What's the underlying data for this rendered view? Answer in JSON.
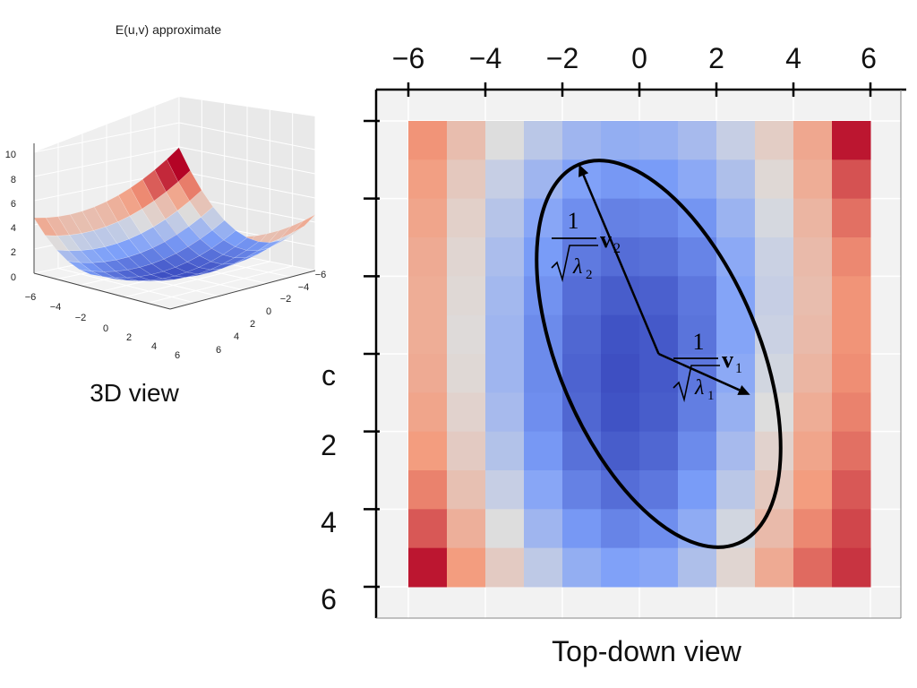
{
  "chart_data": [
    {
      "type": "surface",
      "title": "E(u,v) approximate",
      "caption": "3D view",
      "colormap": "coolwarm",
      "z_ticks": [
        "0",
        "2",
        "4",
        "6",
        "8",
        "10"
      ],
      "x_ticks": [
        "−6",
        "−4",
        "−2",
        "0",
        "2",
        "4",
        "6"
      ],
      "y_ticks": [
        "−6",
        "−4",
        "−2",
        "0",
        "2",
        "4",
        "6"
      ],
      "grid": true
    },
    {
      "type": "heatmap",
      "caption": "Top-down view",
      "colormap": "coolwarm",
      "x_tick_labels": [
        "−6",
        "−4",
        "−2",
        "0",
        "2",
        "4",
        "6"
      ],
      "y_tick_labels": [
        "",
        "",
        "",
        "",
        "",
        "2",
        "4",
        "6"
      ],
      "partial_label": "c",
      "xlim": [
        -7,
        7
      ],
      "ylim": [
        -7,
        7
      ],
      "values": [
        [
          0.76,
          0.62,
          0.5,
          0.41,
          0.34,
          0.31,
          0.32,
          0.36,
          0.44,
          0.56,
          0.7,
          0.97
        ],
        [
          0.73,
          0.58,
          0.44,
          0.34,
          0.26,
          0.23,
          0.24,
          0.29,
          0.38,
          0.52,
          0.68,
          0.87
        ],
        [
          0.71,
          0.55,
          0.4,
          0.28,
          0.2,
          0.16,
          0.17,
          0.22,
          0.33,
          0.48,
          0.65,
          0.82
        ],
        [
          0.69,
          0.53,
          0.37,
          0.24,
          0.14,
          0.1,
          0.11,
          0.17,
          0.29,
          0.45,
          0.63,
          0.78
        ],
        [
          0.68,
          0.52,
          0.35,
          0.21,
          0.1,
          0.05,
          0.06,
          0.13,
          0.27,
          0.44,
          0.62,
          0.76
        ],
        [
          0.68,
          0.51,
          0.34,
          0.19,
          0.08,
          0.02,
          0.04,
          0.12,
          0.27,
          0.45,
          0.63,
          0.76
        ],
        [
          0.69,
          0.52,
          0.34,
          0.19,
          0.07,
          0.01,
          0.04,
          0.13,
          0.29,
          0.47,
          0.65,
          0.77
        ],
        [
          0.71,
          0.54,
          0.36,
          0.2,
          0.08,
          0.02,
          0.05,
          0.15,
          0.32,
          0.5,
          0.68,
          0.79
        ],
        [
          0.74,
          0.57,
          0.39,
          0.23,
          0.11,
          0.05,
          0.08,
          0.19,
          0.36,
          0.54,
          0.71,
          0.82
        ],
        [
          0.79,
          0.61,
          0.44,
          0.28,
          0.16,
          0.1,
          0.13,
          0.24,
          0.41,
          0.58,
          0.74,
          0.86
        ],
        [
          0.86,
          0.67,
          0.5,
          0.34,
          0.23,
          0.17,
          0.2,
          0.3,
          0.47,
          0.63,
          0.78,
          0.89
        ],
        [
          0.97,
          0.74,
          0.57,
          0.42,
          0.31,
          0.26,
          0.28,
          0.38,
          0.53,
          0.69,
          0.83,
          0.92
        ]
      ],
      "ellipse": {
        "center": [
          0.5,
          0
        ],
        "semi_axis_1": {
          "direction": [
            0.9,
            0.4
          ],
          "length": 2.6
        },
        "semi_axis_2": {
          "direction": [
            -0.39,
            -0.92
          ],
          "length": 5.3
        },
        "arrow_1_label": {
          "numerator": "1",
          "lambda": "λ",
          "subscript": "1",
          "vector": "v",
          "vector_sub": "1"
        },
        "arrow_2_label": {
          "numerator": "1",
          "lambda": "λ",
          "subscript": "2",
          "vector": "v",
          "vector_sub": "2"
        }
      }
    }
  ]
}
